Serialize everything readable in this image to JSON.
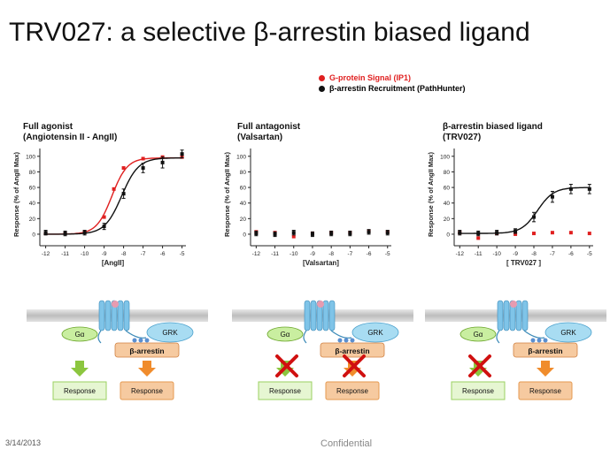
{
  "title": "TRV027: a selective β-arrestin biased ligand",
  "legend": [
    {
      "label": "G-protein Signal (IP1)",
      "color": "#e02020"
    },
    {
      "label": "β-arrestin Recruitment (PathHunter)",
      "color": "#111111"
    }
  ],
  "panels": [
    {
      "title_line1": "Full agonist",
      "title_line2": "(Angiotensin II - AngII)"
    },
    {
      "title_line1": "Full antagonist",
      "title_line2": "(Valsartan)"
    },
    {
      "title_line1": "β-arrestin biased ligand",
      "title_line2": "(TRV027)"
    }
  ],
  "chart_data": [
    {
      "type": "scatter",
      "xlabel": "[AngII]",
      "ylabel": "Response (% of AngII Max)",
      "xticks": [
        "-12",
        "-11",
        "-10",
        "-9",
        "-8",
        "-7",
        "-6",
        "-5"
      ],
      "yticks": [
        "0",
        "20",
        "40",
        "60",
        "80",
        "100"
      ],
      "xlim": [
        -12.3,
        -4.8
      ],
      "ylim": [
        -8,
        110
      ],
      "series": [
        {
          "name": "G-protein Signal (IP1)",
          "color": "#e02020",
          "x": [
            -12,
            -11,
            -10,
            -9,
            -8.5,
            -8,
            -7,
            -6,
            -5
          ],
          "y": [
            1,
            1,
            3,
            22,
            58,
            85,
            97,
            99,
            99
          ],
          "fit": {
            "bottom": 0,
            "top": 98,
            "ec50": -8.6,
            "hill": 1.1
          }
        },
        {
          "name": "β-arrestin Recruitment (PathHunter)",
          "color": "#111111",
          "x": [
            -12,
            -11,
            -10,
            -9,
            -8,
            -7,
            -6,
            -5
          ],
          "y": [
            2,
            1,
            2,
            10,
            52,
            85,
            92,
            103
          ],
          "err": [
            3,
            3,
            3,
            4,
            6,
            6,
            7,
            5
          ],
          "fit": {
            "bottom": 0,
            "top": 98,
            "ec50": -8.1,
            "hill": 1.0
          }
        }
      ]
    },
    {
      "type": "scatter",
      "xlabel": "[Valsartan]",
      "ylabel": "Response (% of AngII Max)",
      "xticks": [
        "-12",
        "-11",
        "-10",
        "-9",
        "-8",
        "-7",
        "-6",
        "-5"
      ],
      "yticks": [
        "0",
        "20",
        "40",
        "60",
        "80",
        "100"
      ],
      "xlim": [
        -12.3,
        -4.8
      ],
      "ylim": [
        -8,
        110
      ],
      "series": [
        {
          "name": "G-protein Signal (IP1)",
          "color": "#e02020",
          "x": [
            -12,
            -11,
            -10,
            -9,
            -8,
            -7,
            -6,
            -5
          ],
          "y": [
            3,
            2,
            -3,
            1,
            2,
            2,
            4,
            3
          ]
        },
        {
          "name": "β-arrestin Recruitment (PathHunter)",
          "color": "#111111",
          "x": [
            -12,
            -11,
            -10,
            -9,
            -8,
            -7,
            -6,
            -5
          ],
          "y": [
            1,
            0,
            2,
            0,
            1,
            1,
            3,
            2
          ],
          "err": [
            3,
            3,
            3,
            3,
            3,
            3,
            3,
            3
          ]
        }
      ]
    },
    {
      "type": "scatter",
      "xlabel": "[ TRV027 ]",
      "ylabel": "Response (% of AngII Max)",
      "xticks": [
        "-12",
        "-11",
        "-10",
        "-9",
        "-8",
        "-7",
        "-6",
        "-5"
      ],
      "yticks": [
        "0",
        "20",
        "40",
        "60",
        "80",
        "100"
      ],
      "xlim": [
        -12.3,
        -4.8
      ],
      "ylim": [
        -8,
        110
      ],
      "series": [
        {
          "name": "G-protein Signal (IP1)",
          "color": "#e02020",
          "x": [
            -12,
            -11,
            -10,
            -9,
            -8,
            -7,
            -6,
            -5
          ],
          "y": [
            2,
            -5,
            1,
            0,
            1,
            2,
            2,
            1
          ]
        },
        {
          "name": "β-arrestin Recruitment (PathHunter)",
          "color": "#111111",
          "x": [
            -12,
            -11,
            -10,
            -9,
            -8,
            -7,
            -6,
            -5
          ],
          "y": [
            2,
            1,
            2,
            4,
            22,
            48,
            58,
            58
          ],
          "err": [
            3,
            3,
            3,
            3,
            6,
            7,
            6,
            6
          ],
          "fit": {
            "bottom": 1,
            "top": 60,
            "ec50": -7.8,
            "hill": 1.0
          }
        }
      ]
    }
  ],
  "diagram_labels": {
    "galpha": "Gα",
    "grk": "GRK",
    "barrestin": "β-arrestin",
    "response": "Response"
  },
  "colors": {
    "membrane": "#c8c8c8",
    "receptor": "#7fc4e8",
    "galpha_fill": "#c9eea0",
    "grk_fill": "#a8dcf2",
    "arrestin_fill": "#f6caa0",
    "green_arrow": "#8cc63f",
    "orange_arrow": "#f08c2c",
    "cross": "#d01010"
  },
  "footer": {
    "date": "3/14/2013",
    "confidential": "Confidential"
  }
}
